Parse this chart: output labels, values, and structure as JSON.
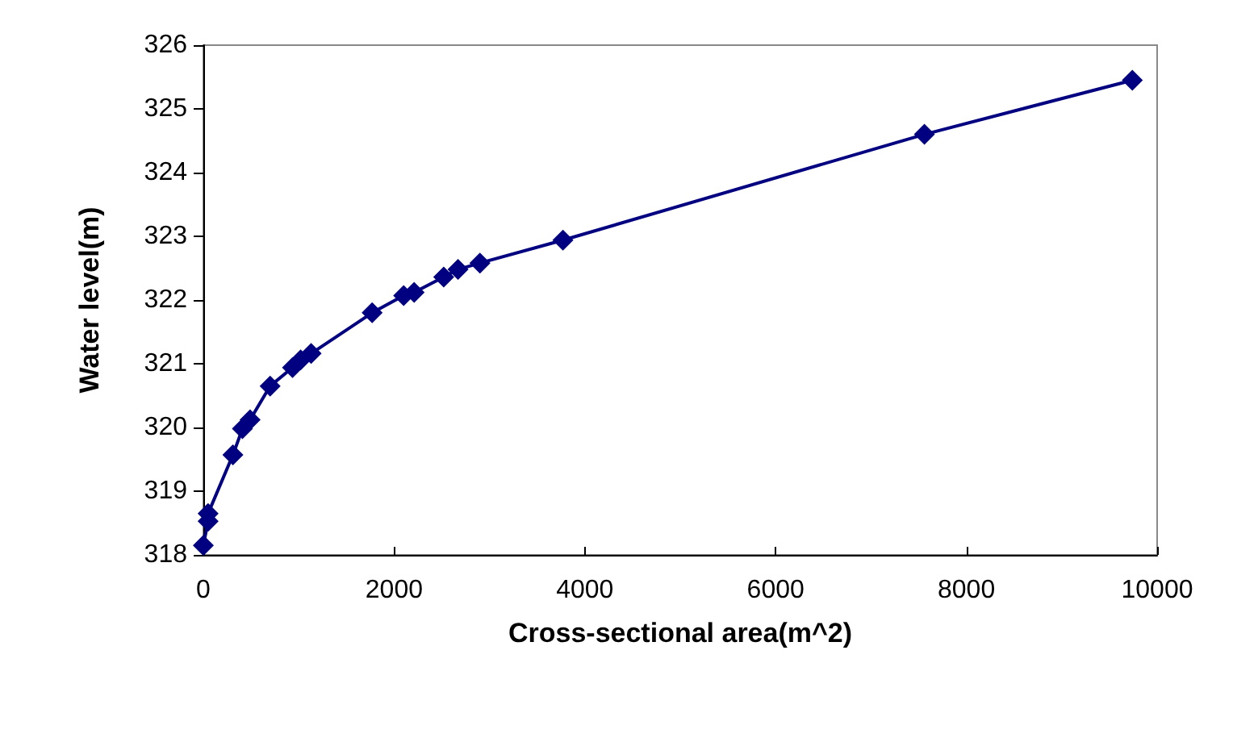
{
  "chart_data": {
    "type": "line",
    "xlabel": "Cross-sectional area(m^2)",
    "ylabel": "Water level(m)",
    "x": [
      0,
      50,
      50,
      310,
      410,
      490,
      700,
      935,
      1020,
      1130,
      1770,
      2100,
      2210,
      2520,
      2670,
      2900,
      3770,
      7560,
      9740
    ],
    "series": [
      {
        "color": "#000080",
        "values": [
          318.15,
          318.53,
          318.65,
          319.57,
          319.98,
          320.12,
          320.65,
          320.94,
          321.06,
          321.16,
          321.8,
          322.07,
          322.12,
          322.36,
          322.48,
          322.58,
          322.94,
          324.6,
          325.45
        ]
      }
    ],
    "xlim": [
      0,
      10000
    ],
    "xticks": [
      0,
      2000,
      4000,
      6000,
      8000,
      10000
    ],
    "ylim": [
      318,
      326
    ],
    "yticks": [
      318,
      319,
      320,
      321,
      322,
      323,
      324,
      325,
      326
    ],
    "grid": false,
    "marker": "diamond",
    "line_style": "solid"
  }
}
